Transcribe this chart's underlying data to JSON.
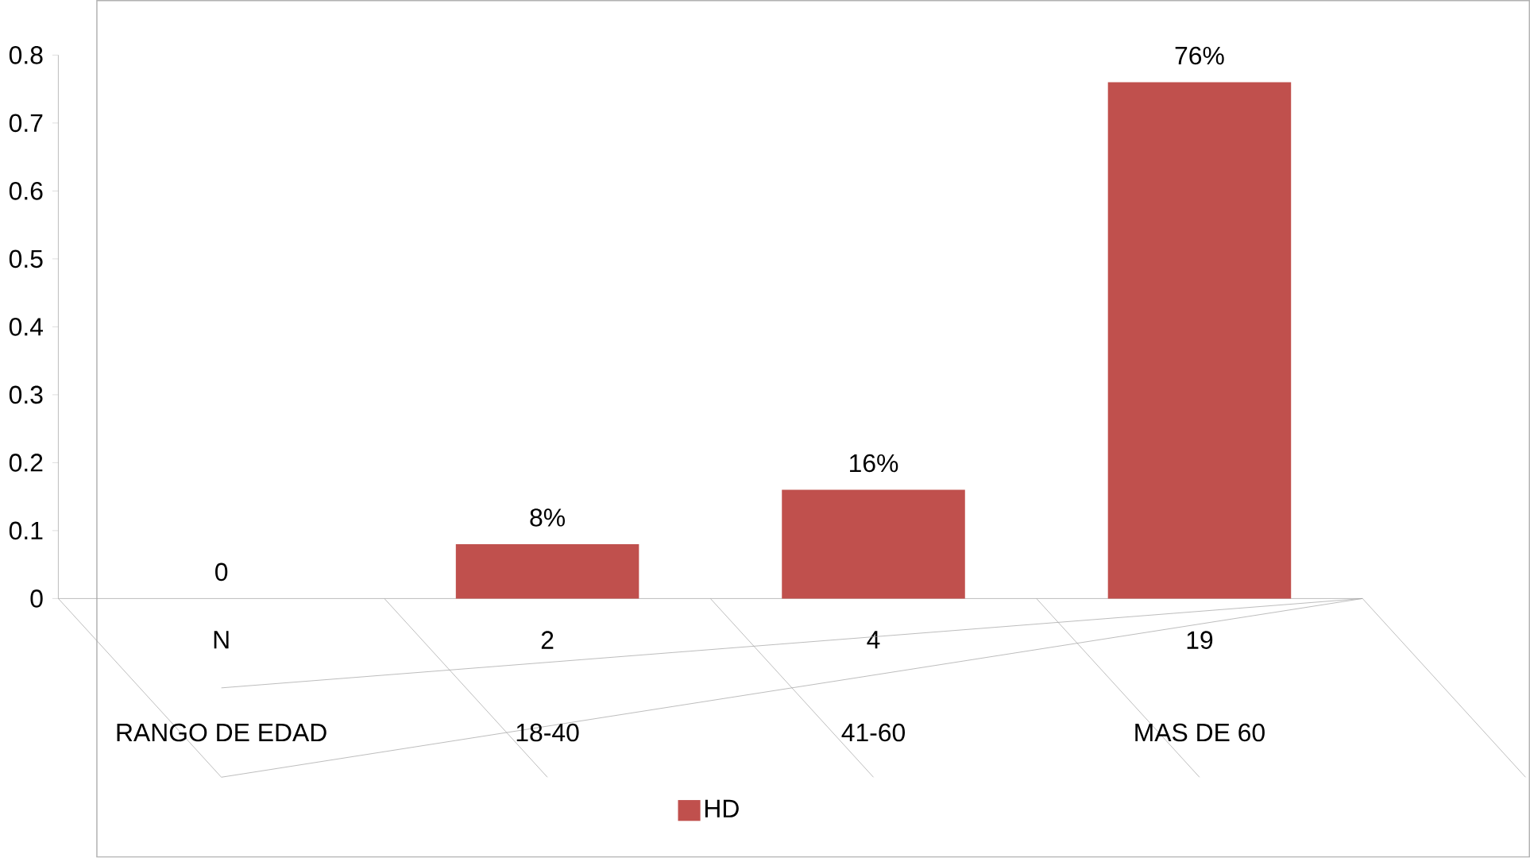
{
  "chart_data": {
    "type": "bar",
    "categories": [
      "N",
      "2",
      "4",
      "19"
    ],
    "series": [
      {
        "name": "HD",
        "color": "#c0504d",
        "values": [
          0,
          0.08,
          0.16,
          0.76
        ],
        "value_labels": [
          "0",
          "8%",
          "16%",
          "76%"
        ]
      }
    ],
    "annotations": [
      "RANGO DE EDAD",
      "18-40",
      "41-60",
      "MAS DE 60"
    ],
    "ylim": [
      0,
      0.8
    ],
    "yticks": [
      0,
      0.1,
      0.2,
      0.3,
      0.4,
      0.5,
      0.6,
      0.7,
      0.8
    ],
    "grid": false,
    "legend": "bottom"
  }
}
